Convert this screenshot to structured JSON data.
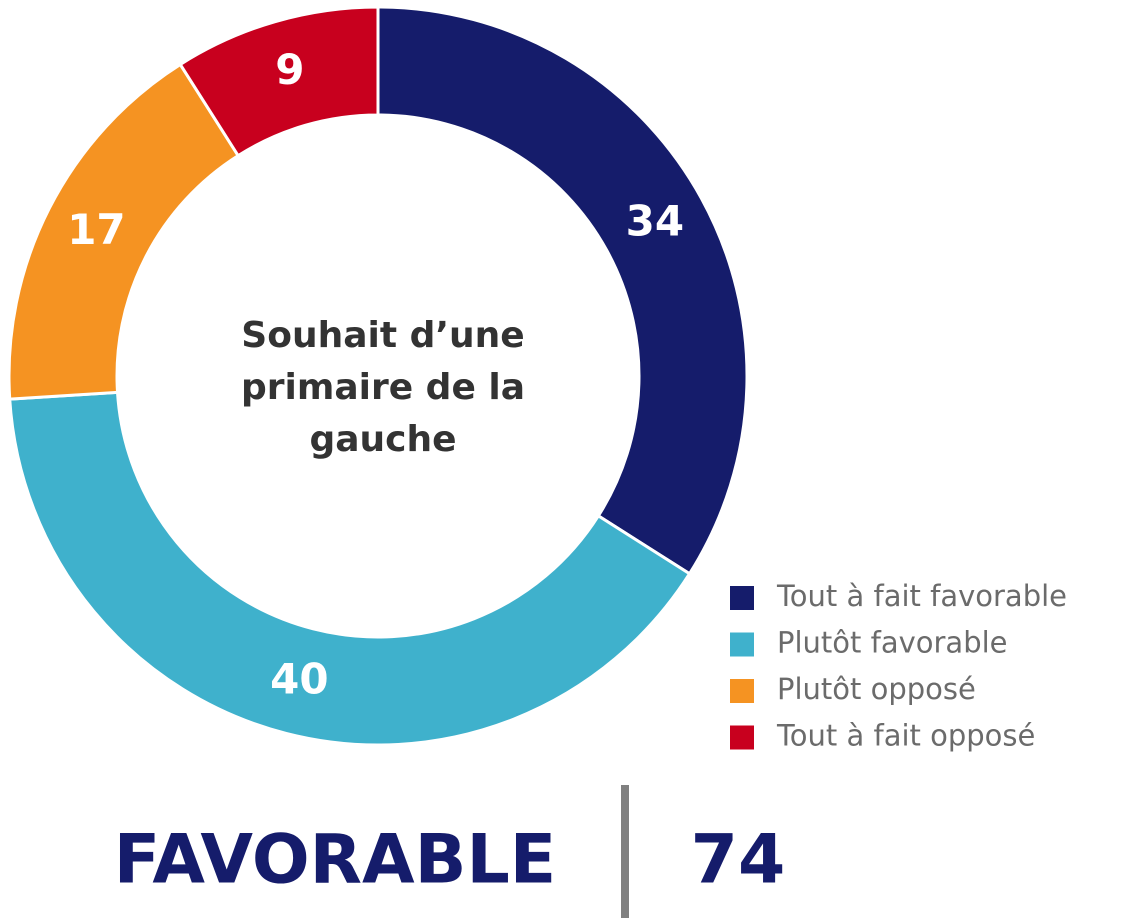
{
  "chart_data": {
    "type": "pie",
    "center_label": [
      "Souhait d’une",
      "primaire de la",
      "gauche"
    ],
    "categories": [
      "Tout à fait favorable",
      "Plutôt favorable",
      "Plutôt opposé",
      "Tout à fait opposé"
    ],
    "values": [
      34,
      40,
      17,
      9
    ],
    "colors": [
      "#151c6b",
      "#3fb1cc",
      "#f59322",
      "#c8001e"
    ],
    "legend": "bottom-right",
    "summary": {
      "label": "FAVORABLE",
      "value": 74
    }
  }
}
